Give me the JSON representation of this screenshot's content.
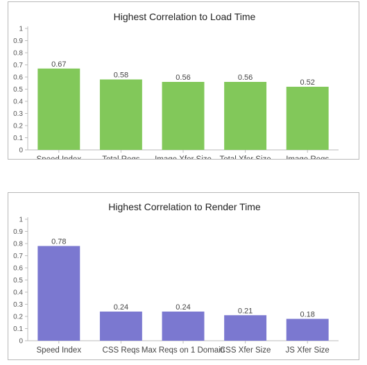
{
  "chart_data": [
    {
      "type": "bar",
      "title": "Highest Correlation to Load Time",
      "xlabel": "",
      "ylabel": "",
      "categories": [
        "Speed Index",
        "Total Reqs",
        "Image Xfer Size",
        "Total Xfer Size",
        "Image Reqs"
      ],
      "values": [
        0.67,
        0.58,
        0.56,
        0.56,
        0.52
      ],
      "value_labels": [
        "0.67",
        "0.58",
        "0.56",
        "0.56",
        "0.52"
      ],
      "ylim": [
        0,
        1
      ],
      "yticks": [
        "0",
        "0.1",
        "0.2",
        "0.3",
        "0.4",
        "0.5",
        "0.6",
        "0.7",
        "0.8",
        "0.9",
        "1"
      ],
      "color": "#82c85a",
      "grid": false
    },
    {
      "type": "bar",
      "title": "Highest Correlation to Render Time",
      "xlabel": "",
      "ylabel": "",
      "categories": [
        "Speed Index",
        "CSS Reqs",
        "Max Reqs on 1 Domain",
        "CSS Xfer Size",
        "JS Xfer Size"
      ],
      "values": [
        0.78,
        0.24,
        0.24,
        0.21,
        0.18
      ],
      "value_labels": [
        "0.78",
        "0.24",
        "0.24",
        "0.21",
        "0.18"
      ],
      "ylim": [
        0,
        1
      ],
      "yticks": [
        "0",
        "0.1",
        "0.2",
        "0.3",
        "0.4",
        "0.5",
        "0.6",
        "0.7",
        "0.8",
        "0.9",
        "1"
      ],
      "color": "#7b78d0",
      "grid": false
    }
  ]
}
